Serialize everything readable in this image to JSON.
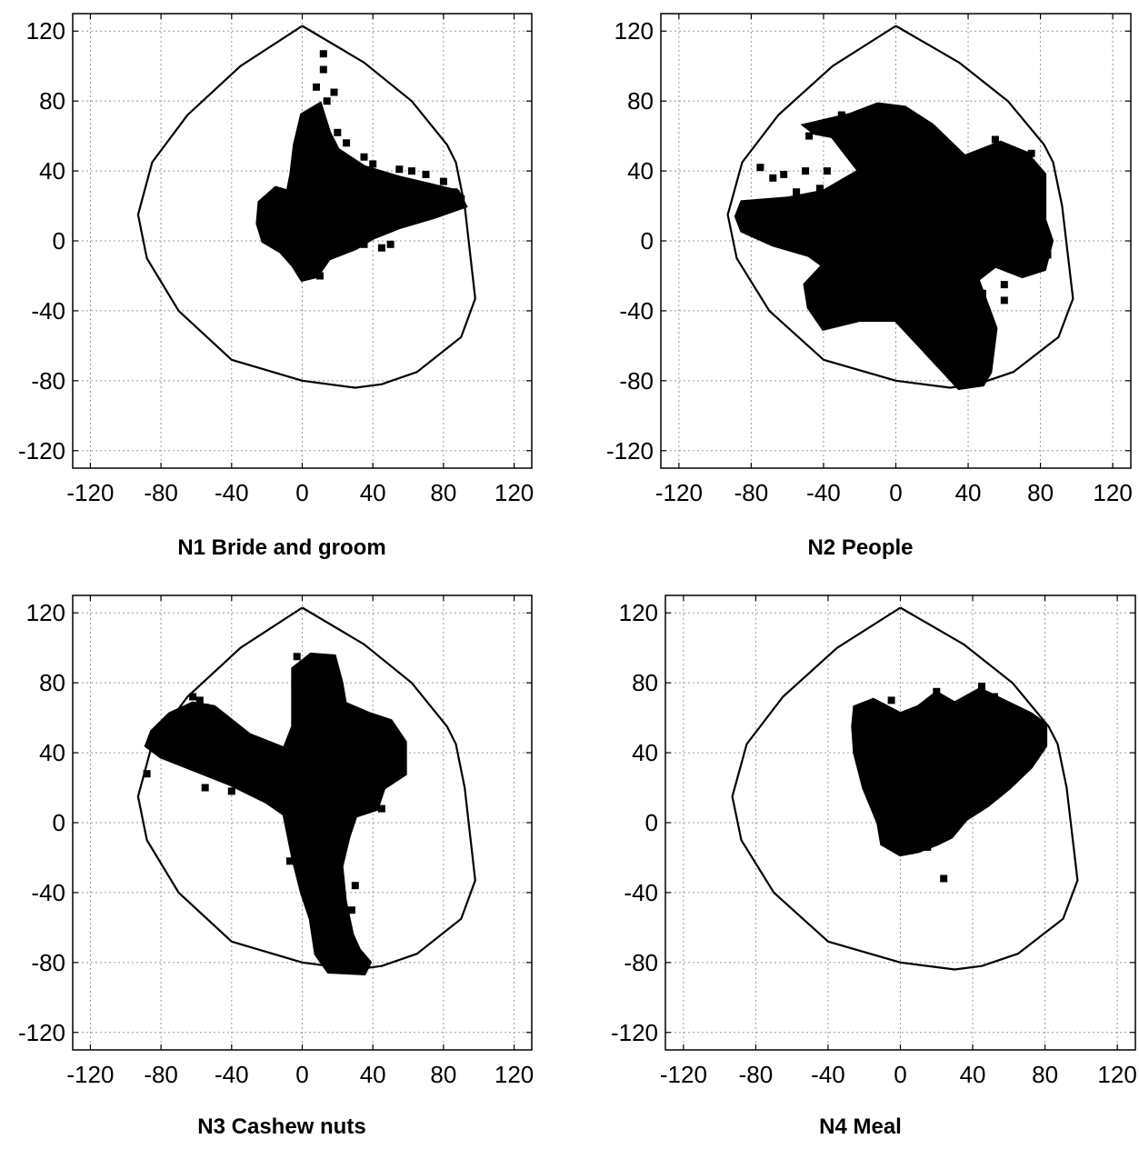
{
  "chart_data": [
    {
      "type": "scatter",
      "caption": "N1 Bride and groom",
      "xlim": [
        -130,
        130
      ],
      "ylim": [
        -130,
        130
      ],
      "xticks": [
        -120,
        -80,
        -40,
        0,
        40,
        80,
        120
      ],
      "yticks": [
        -120,
        -80,
        -40,
        0,
        40,
        80,
        120
      ],
      "xticklabels": [
        "-120",
        "-80",
        "-40",
        "0",
        "40",
        "80",
        "120"
      ],
      "yticklabels": [
        "-120",
        "-80",
        "-40",
        "0",
        "40",
        "80",
        "120"
      ],
      "grid": true,
      "gamut": [
        [
          0,
          123
        ],
        [
          35,
          102
        ],
        [
          62,
          80
        ],
        [
          82,
          55
        ],
        [
          87,
          45
        ],
        [
          92,
          20
        ],
        [
          98,
          -33
        ],
        [
          90,
          -55
        ],
        [
          65,
          -75
        ],
        [
          45,
          -82
        ],
        [
          30,
          -84
        ],
        [
          0,
          -80
        ],
        [
          -40,
          -68
        ],
        [
          -70,
          -40
        ],
        [
          -88,
          -10
        ],
        [
          -93,
          15
        ],
        [
          -85,
          45
        ],
        [
          -65,
          72
        ],
        [
          -35,
          100
        ],
        [
          0,
          123
        ]
      ],
      "cloud": [
        [
          0,
          72
        ],
        [
          10,
          78
        ],
        [
          15,
          62
        ],
        [
          20,
          52
        ],
        [
          35,
          42
        ],
        [
          55,
          36
        ],
        [
          72,
          32
        ],
        [
          88,
          28
        ],
        [
          92,
          20
        ],
        [
          75,
          14
        ],
        [
          55,
          8
        ],
        [
          40,
          2
        ],
        [
          30,
          -4
        ],
        [
          15,
          -10
        ],
        [
          8,
          -20
        ],
        [
          0,
          -22
        ],
        [
          -5,
          -14
        ],
        [
          -12,
          -6
        ],
        [
          -22,
          0
        ],
        [
          -25,
          10
        ],
        [
          -24,
          22
        ],
        [
          -15,
          30
        ],
        [
          -8,
          28
        ],
        [
          -6,
          38
        ],
        [
          -4,
          55
        ]
      ],
      "points": [
        [
          12,
          107
        ],
        [
          12,
          98
        ],
        [
          8,
          88
        ],
        [
          18,
          85
        ],
        [
          14,
          80
        ],
        [
          10,
          72
        ],
        [
          20,
          62
        ],
        [
          25,
          56
        ],
        [
          35,
          48
        ],
        [
          40,
          44
        ],
        [
          55,
          41
        ],
        [
          62,
          40
        ],
        [
          70,
          38
        ],
        [
          80,
          34
        ],
        [
          86,
          28
        ],
        [
          90,
          24
        ],
        [
          35,
          -2
        ],
        [
          50,
          -2
        ],
        [
          45,
          -4
        ],
        [
          10,
          -20
        ]
      ]
    },
    {
      "type": "scatter",
      "caption": "N2 People",
      "xlim": [
        -130,
        130
      ],
      "ylim": [
        -130,
        130
      ],
      "xticks": [
        -120,
        -80,
        -40,
        0,
        40,
        80,
        120
      ],
      "yticks": [
        -120,
        -80,
        -40,
        0,
        40,
        80,
        120
      ],
      "xticklabels": [
        "-120",
        "-80",
        "-40",
        "0",
        "40",
        "80",
        "120"
      ],
      "yticklabels": [
        "-120",
        "-80",
        "-40",
        "0",
        "40",
        "80",
        "120"
      ],
      "grid": true,
      "gamut": [
        [
          0,
          123
        ],
        [
          35,
          102
        ],
        [
          62,
          80
        ],
        [
          82,
          55
        ],
        [
          87,
          45
        ],
        [
          92,
          20
        ],
        [
          98,
          -33
        ],
        [
          90,
          -55
        ],
        [
          65,
          -75
        ],
        [
          45,
          -82
        ],
        [
          30,
          -84
        ],
        [
          0,
          -80
        ],
        [
          -40,
          -68
        ],
        [
          -70,
          -40
        ],
        [
          -88,
          -10
        ],
        [
          -93,
          15
        ],
        [
          -85,
          45
        ],
        [
          -65,
          72
        ],
        [
          -35,
          100
        ],
        [
          0,
          123
        ]
      ],
      "cloud": [
        [
          -25,
          72
        ],
        [
          -10,
          78
        ],
        [
          5,
          76
        ],
        [
          20,
          66
        ],
        [
          38,
          48
        ],
        [
          58,
          56
        ],
        [
          72,
          50
        ],
        [
          82,
          38
        ],
        [
          82,
          12
        ],
        [
          86,
          0
        ],
        [
          82,
          -16
        ],
        [
          70,
          -20
        ],
        [
          55,
          -14
        ],
        [
          45,
          -22
        ],
        [
          55,
          -50
        ],
        [
          52,
          -75
        ],
        [
          48,
          -82
        ],
        [
          35,
          -84
        ],
        [
          18,
          -65
        ],
        [
          0,
          -45
        ],
        [
          -20,
          -45
        ],
        [
          -40,
          -50
        ],
        [
          -48,
          -38
        ],
        [
          -50,
          -25
        ],
        [
          -40,
          -14
        ],
        [
          -48,
          -8
        ],
        [
          -68,
          -2
        ],
        [
          -85,
          6
        ],
        [
          -88,
          14
        ],
        [
          -85,
          22
        ],
        [
          -60,
          24
        ],
        [
          -40,
          28
        ],
        [
          -20,
          40
        ],
        [
          -35,
          60
        ],
        [
          -45,
          62
        ],
        [
          -50,
          66
        ]
      ],
      "points": [
        [
          -75,
          42
        ],
        [
          -68,
          36
        ],
        [
          -62,
          38
        ],
        [
          -55,
          28
        ],
        [
          -50,
          40
        ],
        [
          -42,
          30
        ],
        [
          -38,
          40
        ],
        [
          55,
          58
        ],
        [
          75,
          50
        ],
        [
          60,
          -25
        ],
        [
          48,
          -30
        ],
        [
          50,
          -45
        ],
        [
          52,
          -58
        ],
        [
          48,
          -67
        ],
        [
          50,
          -73
        ],
        [
          60,
          -34
        ],
        [
          84,
          -8
        ],
        [
          -48,
          60
        ],
        [
          -30,
          72
        ]
      ]
    },
    {
      "type": "scatter",
      "caption": "N3 Cashew nuts",
      "xlim": [
        -130,
        130
      ],
      "ylim": [
        -130,
        130
      ],
      "xticks": [
        -120,
        -80,
        -40,
        0,
        40,
        80,
        120
      ],
      "yticks": [
        -120,
        -80,
        -40,
        0,
        40,
        80,
        120
      ],
      "xticklabels": [
        "-120",
        "-80",
        "-40",
        "0",
        "40",
        "80",
        "120"
      ],
      "yticklabels": [
        "-120",
        "-80",
        "-40",
        "0",
        "40",
        "80",
        "120"
      ],
      "grid": true,
      "gamut": [
        [
          0,
          123
        ],
        [
          35,
          102
        ],
        [
          62,
          80
        ],
        [
          82,
          55
        ],
        [
          87,
          45
        ],
        [
          92,
          20
        ],
        [
          98,
          -33
        ],
        [
          90,
          -55
        ],
        [
          65,
          -75
        ],
        [
          45,
          -82
        ],
        [
          30,
          -84
        ],
        [
          0,
          -80
        ],
        [
          -40,
          -68
        ],
        [
          -70,
          -40
        ],
        [
          -88,
          -10
        ],
        [
          -93,
          15
        ],
        [
          -85,
          45
        ],
        [
          -65,
          72
        ],
        [
          -35,
          100
        ],
        [
          0,
          123
        ]
      ],
      "cloud": [
        [
          -5,
          88
        ],
        [
          5,
          96
        ],
        [
          18,
          95
        ],
        [
          22,
          80
        ],
        [
          24,
          68
        ],
        [
          38,
          62
        ],
        [
          50,
          58
        ],
        [
          58,
          46
        ],
        [
          58,
          28
        ],
        [
          46,
          20
        ],
        [
          42,
          8
        ],
        [
          30,
          4
        ],
        [
          26,
          -8
        ],
        [
          22,
          -25
        ],
        [
          24,
          -45
        ],
        [
          28,
          -64
        ],
        [
          32,
          -73
        ],
        [
          38,
          -80
        ],
        [
          35,
          -86
        ],
        [
          15,
          -85
        ],
        [
          8,
          -75
        ],
        [
          5,
          -55
        ],
        [
          0,
          -40
        ],
        [
          -5,
          -20
        ],
        [
          -10,
          5
        ],
        [
          -20,
          12
        ],
        [
          -40,
          22
        ],
        [
          -60,
          30
        ],
        [
          -80,
          38
        ],
        [
          -88,
          44
        ],
        [
          -85,
          52
        ],
        [
          -75,
          62
        ],
        [
          -62,
          68
        ],
        [
          -50,
          66
        ],
        [
          -30,
          50
        ],
        [
          -10,
          42
        ],
        [
          -5,
          55
        ]
      ],
      "points": [
        [
          -3,
          95
        ],
        [
          -62,
          72
        ],
        [
          -58,
          70
        ],
        [
          -55,
          66
        ],
        [
          -48,
          62
        ],
        [
          -88,
          28
        ],
        [
          -78,
          45
        ],
        [
          -55,
          20
        ],
        [
          -40,
          18
        ],
        [
          -25,
          28
        ],
        [
          30,
          -36
        ],
        [
          28,
          -50
        ],
        [
          22,
          -60
        ],
        [
          -7,
          -22
        ],
        [
          45,
          8
        ],
        [
          52,
          38
        ]
      ]
    },
    {
      "type": "scatter",
      "caption": "N4 Meal",
      "xlim": [
        -130,
        130
      ],
      "ylim": [
        -130,
        130
      ],
      "xticks": [
        -120,
        -80,
        -40,
        0,
        40,
        80,
        120
      ],
      "yticks": [
        -120,
        -80,
        -40,
        0,
        40,
        80,
        120
      ],
      "xticklabels": [
        "-120",
        "-80",
        "-40",
        "0",
        "40",
        "80",
        "120"
      ],
      "yticklabels": [
        "-120",
        "-80",
        "-40",
        "0",
        "40",
        "80",
        "120"
      ],
      "grid": true,
      "gamut": [
        [
          0,
          123
        ],
        [
          35,
          102
        ],
        [
          62,
          80
        ],
        [
          82,
          55
        ],
        [
          87,
          45
        ],
        [
          92,
          20
        ],
        [
          98,
          -33
        ],
        [
          90,
          -55
        ],
        [
          65,
          -75
        ],
        [
          45,
          -82
        ],
        [
          30,
          -84
        ],
        [
          0,
          -80
        ],
        [
          -40,
          -68
        ],
        [
          -70,
          -40
        ],
        [
          -88,
          -10
        ],
        [
          -93,
          15
        ],
        [
          -85,
          45
        ],
        [
          -65,
          72
        ],
        [
          -35,
          100
        ],
        [
          0,
          123
        ]
      ],
      "cloud": [
        [
          -25,
          66
        ],
        [
          -15,
          70
        ],
        [
          0,
          62
        ],
        [
          10,
          66
        ],
        [
          20,
          74
        ],
        [
          30,
          68
        ],
        [
          44,
          76
        ],
        [
          60,
          68
        ],
        [
          72,
          62
        ],
        [
          80,
          56
        ],
        [
          80,
          44
        ],
        [
          72,
          32
        ],
        [
          60,
          20
        ],
        [
          48,
          10
        ],
        [
          36,
          2
        ],
        [
          28,
          -8
        ],
        [
          20,
          -12
        ],
        [
          10,
          -16
        ],
        [
          0,
          -18
        ],
        [
          -10,
          -12
        ],
        [
          -12,
          0
        ],
        [
          -20,
          20
        ],
        [
          -25,
          40
        ],
        [
          -26,
          55
        ]
      ],
      "points": [
        [
          45,
          78
        ],
        [
          52,
          72
        ],
        [
          20,
          75
        ],
        [
          -5,
          70
        ],
        [
          24,
          -32
        ],
        [
          -20,
          40
        ],
        [
          78,
          50
        ],
        [
          60,
          66
        ],
        [
          36,
          4
        ],
        [
          30,
          -2
        ],
        [
          5,
          -16
        ],
        [
          15,
          -14
        ]
      ]
    }
  ]
}
